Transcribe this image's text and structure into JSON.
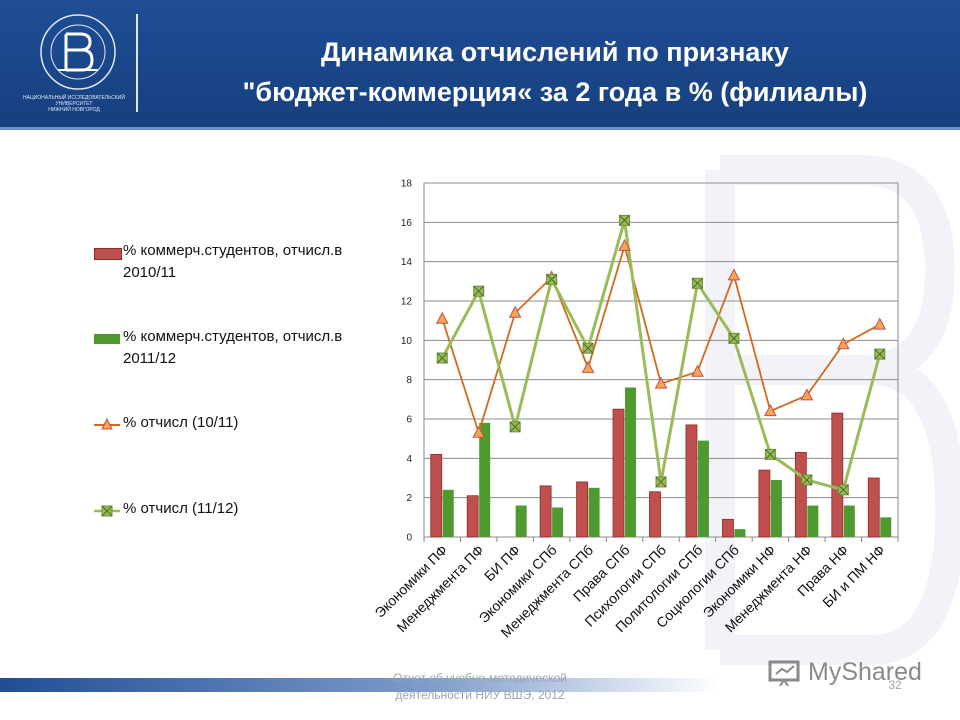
{
  "header": {
    "title_line1": "Динамика отчислений по признаку",
    "title_line2": "\"бюджет-коммерция« за 2 года в % (филиалы)",
    "logo_caption_1": "НАЦИОНАЛЬНЫЙ ИССЛЕДОВАТЕЛЬСКИЙ",
    "logo_caption_2": "УНИВЕРСИТЕТ",
    "logo_caption_3": "НИЖНИЙ НОВГОРОД"
  },
  "footer": {
    "text_line1": "Отчет об учебно-методической",
    "text_line2": "деятельности НИУ ВШЭ, 2012",
    "page_number": "32",
    "brand": "MyShared"
  },
  "colors": {
    "header_bg": "#1f4e96",
    "bar_2010": "#c0504d",
    "bar_2011": "#4e9a2e",
    "line_10_11": "#d2691e",
    "line_11_12": "#9bbb59"
  },
  "chart_data": {
    "type": "bar",
    "categories": [
      "Экономики ПФ",
      "Менеджмента ПФ",
      "БИ ПФ",
      "Экономики СПб",
      "Менеджмента СПб",
      "Права СПб",
      "Психологии СПб",
      "Политологии СПб",
      "Социологии СПб",
      "Экономики НФ",
      "Менеджмента НФ",
      "Права НФ",
      "БИ и ПМ НФ"
    ],
    "ylim": [
      0,
      18
    ],
    "yticks": [
      "0",
      "2",
      "4",
      "6",
      "8",
      "10",
      "12",
      "14",
      "16",
      "18"
    ],
    "grid": true,
    "legend_position": "left",
    "series": [
      {
        "name": "% коммерч.студентов, отчисл.в 2010/11",
        "type": "bar",
        "values": [
          4.2,
          2.1,
          0,
          2.6,
          2.8,
          6.5,
          2.3,
          5.7,
          0.9,
          3.4,
          4.3,
          6.3,
          3.0
        ]
      },
      {
        "name": "% коммерч.студентов, отчисл.в 2011/12",
        "type": "bar",
        "values": [
          2.4,
          5.8,
          1.6,
          1.5,
          2.5,
          7.6,
          0,
          4.9,
          0.4,
          2.9,
          1.6,
          1.6,
          1.0
        ]
      },
      {
        "name": "% отчисл (10/11)",
        "type": "line",
        "marker": "triangle",
        "values": [
          11.1,
          5.3,
          11.4,
          13.2,
          8.6,
          14.8,
          7.8,
          8.4,
          13.3,
          6.4,
          7.2,
          9.8,
          10.8
        ]
      },
      {
        "name": "% отчисл (11/12)",
        "type": "line",
        "marker": "square-x",
        "values": [
          9.1,
          12.5,
          5.6,
          13.1,
          9.6,
          16.1,
          2.8,
          12.9,
          10.1,
          4.2,
          2.9,
          2.4,
          9.3
        ]
      }
    ]
  }
}
